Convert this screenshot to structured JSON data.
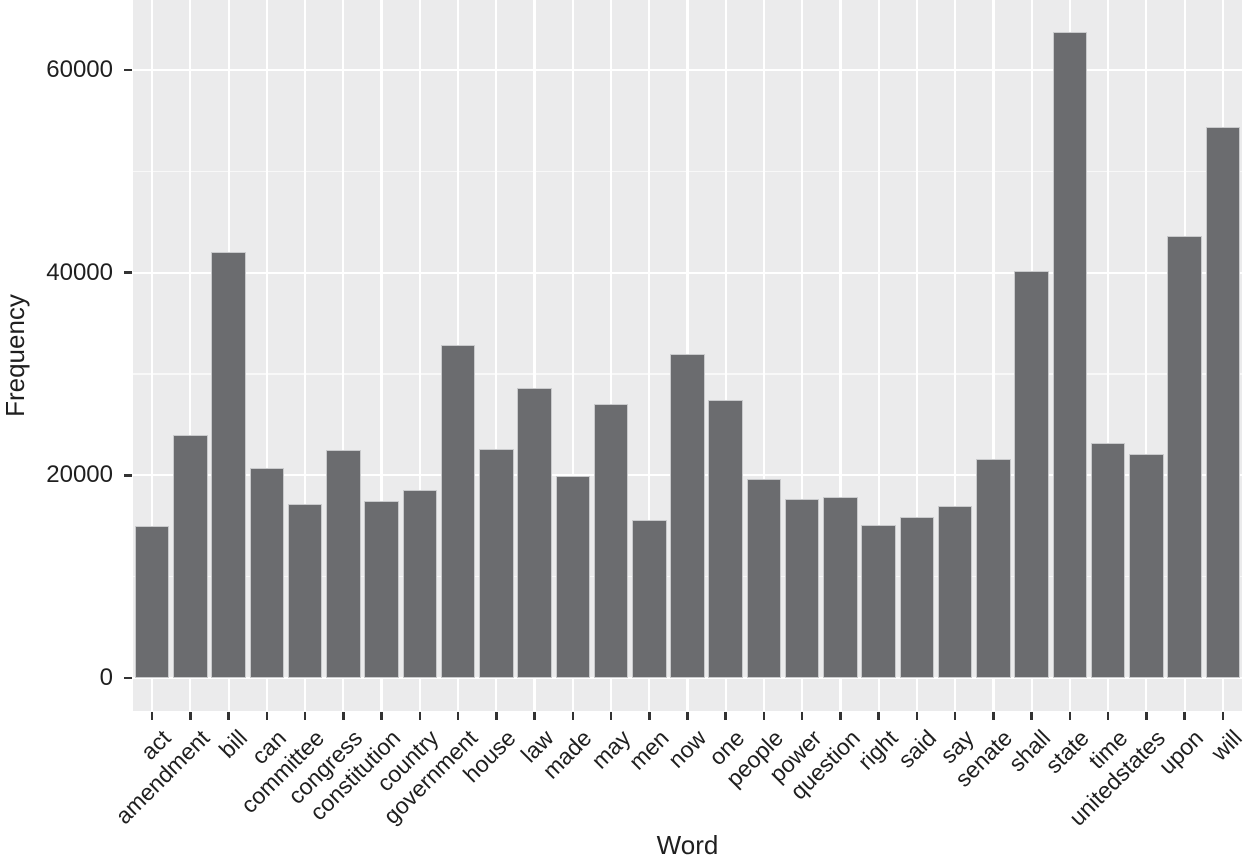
{
  "chart_data": {
    "type": "bar",
    "title": "",
    "xlabel": "Word",
    "ylabel": "Frequency",
    "categories": [
      "act",
      "amendment",
      "bill",
      "can",
      "committee",
      "congress",
      "constitution",
      "country",
      "government",
      "house",
      "law",
      "made",
      "may",
      "men",
      "now",
      "one",
      "people",
      "power",
      "question",
      "right",
      "said",
      "say",
      "senate",
      "shall",
      "state",
      "time",
      "unitedstates",
      "upon",
      "will"
    ],
    "values": [
      15000,
      24000,
      42000,
      20700,
      17200,
      22500,
      17500,
      18500,
      32900,
      22600,
      28600,
      19900,
      27000,
      15600,
      32000,
      27400,
      19600,
      17700,
      17900,
      15100,
      15900,
      17000,
      21600,
      40200,
      63700,
      23200,
      22100,
      43600,
      54400
    ],
    "y_major_ticks": [
      0,
      20000,
      40000,
      60000
    ],
    "y_tick_labels": [
      "0",
      "20000",
      "40000",
      "60000"
    ],
    "y_minor_gridlines": [
      10000,
      30000,
      50000
    ],
    "ylim": [
      -3260,
      66900
    ],
    "grid": "on",
    "legend": "none",
    "colors": {
      "bar_fill": "#6b6c6f",
      "bar_outline": "#c9cacc",
      "panel_bg": "#ebebec",
      "grid_major": "#ffffff",
      "grid_minor": "#f7f7f8",
      "tick_mark": "#333333",
      "axis_text": "#1f1f1f"
    }
  }
}
